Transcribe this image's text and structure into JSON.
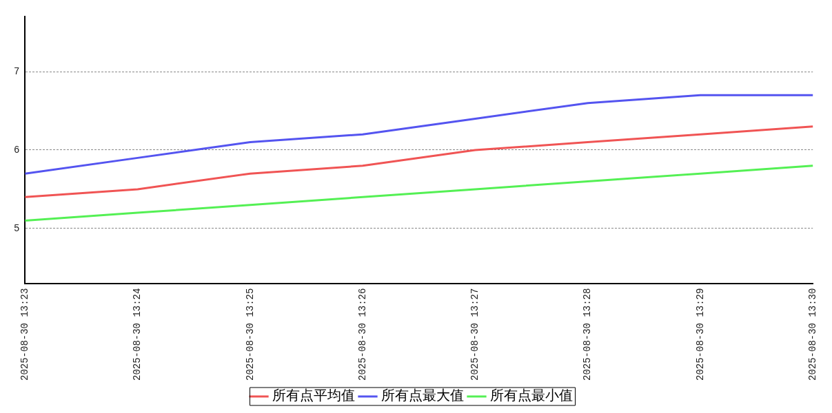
{
  "chart_data": {
    "type": "line",
    "categories": [
      "2025-08-30 13:23",
      "2025-08-30 13:24",
      "2025-08-30 13:25",
      "2025-08-30 13:26",
      "2025-08-30 13:27",
      "2025-08-30 13:28",
      "2025-08-30 13:29",
      "2025-08-30 13:30"
    ],
    "series": [
      {
        "name": "所有点平均值",
        "color": "#f05454",
        "values": [
          5.4,
          5.5,
          5.7,
          5.8,
          6.0,
          6.1,
          6.2,
          6.3
        ]
      },
      {
        "name": "所有点最大值",
        "color": "#5454f0",
        "values": [
          5.7,
          5.9,
          6.1,
          6.2,
          6.4,
          6.6,
          6.7,
          6.7
        ]
      },
      {
        "name": "所有点最小值",
        "color": "#54f054",
        "values": [
          5.1,
          5.2,
          5.3,
          5.4,
          5.5,
          5.6,
          5.7,
          5.8
        ]
      }
    ],
    "ylim": [
      4.3,
      7.7
    ],
    "yticks": [
      5,
      6,
      7
    ],
    "grid": "y",
    "legend": "bottom",
    "marker": "none",
    "line_style": "solid"
  }
}
